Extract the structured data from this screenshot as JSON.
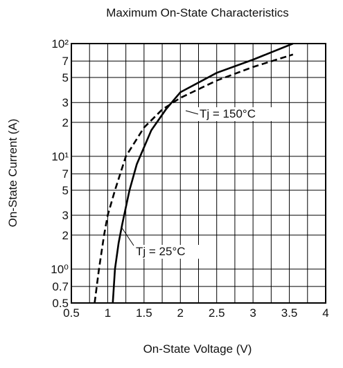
{
  "chart_data": {
    "type": "line",
    "title": "Maximum On-State Characteristics",
    "x_label": "On-State Voltage  (V)",
    "y_label": "On-State Current  (A)",
    "y_log": true,
    "grid": true,
    "xlim": [
      0.5,
      4.0
    ],
    "ylim": [
      0.5,
      100
    ],
    "xticks": [
      0.5,
      1.0,
      1.5,
      2.0,
      2.5,
      3.0,
      3.5,
      4.0
    ],
    "x_minor_grid": [
      0.75,
      1.25,
      1.75,
      2.25,
      2.75,
      3.25,
      3.75
    ],
    "yticks": [
      {
        "value": 100,
        "label": "10²"
      },
      7,
      5,
      3,
      2,
      {
        "value": 10,
        "label": "10¹"
      },
      7,
      5,
      3,
      2,
      {
        "value": 1,
        "label": "10⁰"
      },
      0.7,
      0.5
    ],
    "ytick_values": [
      100,
      70,
      50,
      30,
      20,
      10,
      7,
      5,
      3,
      2,
      1,
      0.7,
      0.5
    ],
    "series": [
      {
        "name": "Tj = 25°C",
        "color": "#000000",
        "dash": "solid",
        "x": [
          1.07,
          1.1,
          1.15,
          1.2,
          1.3,
          1.4,
          1.6,
          1.8,
          2.0,
          2.5,
          3.0,
          3.55
        ],
        "values": [
          0.5,
          1,
          1.7,
          2.5,
          5,
          8.5,
          17,
          26,
          37,
          55,
          72,
          100
        ]
      },
      {
        "name": "Tj = 150°C",
        "color": "#000000",
        "dash": "dashed",
        "x": [
          0.82,
          0.88,
          0.95,
          1.0,
          1.1,
          1.25,
          1.5,
          1.75,
          2.0,
          2.5,
          3.0,
          3.55
        ],
        "values": [
          0.5,
          1,
          2,
          3,
          5,
          10,
          18,
          26,
          33,
          47,
          62,
          80
        ]
      }
    ]
  }
}
